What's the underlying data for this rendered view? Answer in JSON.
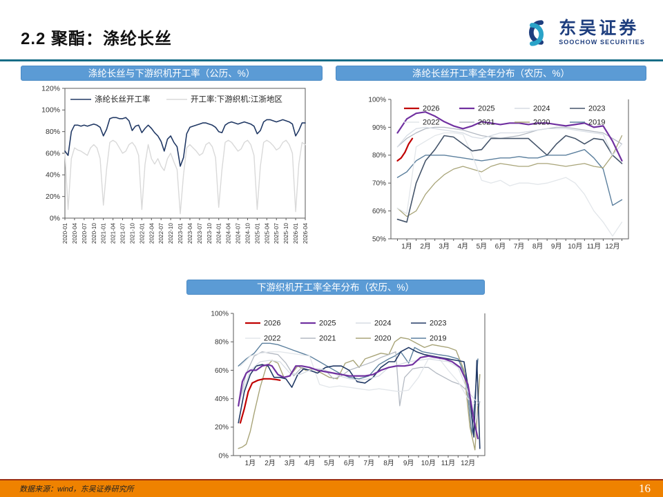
{
  "page": {
    "title": "2.2 聚酯：涤纶长丝",
    "page_number": "16",
    "source_note": "数据来源：wind，东吴证券研究所"
  },
  "logo": {
    "name_cn": "东吴证券",
    "name_en": "SOOCHOW SECURITIES"
  },
  "colors": {
    "chart_header_bar": "#5b9bd5",
    "top_divider": "#176d86",
    "footer_bg": "#ef8200",
    "footer_accent": "#9c2f12",
    "logo_navy": "#1e3e7e",
    "logo_teal": "#2aa3c8"
  },
  "chart_data": [
    {
      "id": "chart1",
      "type": "line",
      "title": "涤纶长丝与下游织机开工率（公历、%）",
      "xlabel": "",
      "ylabel": "",
      "ylim": [
        0,
        120
      ],
      "ystep": 20,
      "legend_position": "top-inside",
      "grid": false,
      "x_tick_labels": [
        "2020-01",
        "2020-04",
        "2020-07",
        "2020-10",
        "2021-01",
        "2021-04",
        "2021-07",
        "2021-10",
        "2022-01",
        "2022-04",
        "2022-07",
        "2022-10",
        "2023-01",
        "2023-04",
        "2023-07",
        "2023-10",
        "2024-01",
        "2024-04",
        "2024-07",
        "2024-10",
        "2025-01",
        "2025-04",
        "2025-07",
        "2025-10",
        "2026-01",
        "2026-04"
      ],
      "series": [
        {
          "name": "涤纶长丝开工率",
          "color": "#203864",
          "width": 1.6,
          "values": [
            62,
            58,
            80,
            86,
            86,
            85,
            86,
            85,
            86,
            87,
            86,
            84,
            76,
            82,
            92,
            93,
            93,
            92,
            92,
            93,
            90,
            81,
            85,
            86,
            79,
            83,
            86,
            83,
            79,
            76,
            71,
            62,
            73,
            76,
            70,
            66,
            48,
            56,
            78,
            84,
            85,
            86,
            87,
            88,
            88,
            87,
            86,
            84,
            80,
            79,
            86,
            88,
            89,
            88,
            87,
            88,
            89,
            88,
            87,
            85,
            78,
            81,
            89,
            91,
            91,
            90,
            89,
            90,
            91,
            90,
            89,
            87,
            76,
            81,
            88,
            88
          ]
        },
        {
          "name": "开工率:下游织机:江浙地区",
          "color": "#d9d9d9",
          "width": 1.4,
          "values": [
            60,
            8,
            55,
            65,
            63,
            62,
            60,
            58,
            65,
            68,
            65,
            55,
            12,
            45,
            70,
            72,
            70,
            65,
            60,
            62,
            68,
            70,
            66,
            58,
            8,
            50,
            68,
            55,
            50,
            55,
            48,
            44,
            55,
            60,
            52,
            45,
            4,
            40,
            65,
            68,
            65,
            62,
            58,
            60,
            68,
            70,
            66,
            56,
            10,
            45,
            70,
            72,
            70,
            66,
            62,
            64,
            70,
            72,
            68,
            58,
            8,
            48,
            70,
            72,
            70,
            67,
            63,
            65,
            70,
            72,
            68,
            60,
            6,
            50,
            70,
            68
          ]
        }
      ]
    },
    {
      "id": "chart2",
      "type": "line",
      "title": "涤纶长丝开工率全年分布（农历、%）",
      "xlabel": "",
      "ylabel": "",
      "ylim": [
        50,
        100
      ],
      "ystep": 10,
      "legend_position": "top-inside",
      "grid": false,
      "x_tick_labels": [
        "1月",
        "2月",
        "3月",
        "4月",
        "5月",
        "6月",
        "7月",
        "8月",
        "9月",
        "10月",
        "11月",
        "12月"
      ],
      "x": [
        0.5,
        1,
        1.5,
        2,
        2.5,
        3,
        3.5,
        4,
        4.5,
        5,
        5.5,
        6,
        6.5,
        7,
        7.5,
        8,
        8.5,
        9,
        9.5,
        10,
        10.5,
        11,
        11.5,
        12,
        12.5
      ],
      "series": [
        {
          "name": "2026",
          "color": "#c00000",
          "width": 2.2,
          "x": [
            0.5,
            0.7,
            0.9,
            1.1,
            1.3
          ],
          "values": [
            78,
            79,
            81,
            84,
            86
          ]
        },
        {
          "name": "2025",
          "color": "#7030a0",
          "width": 2.2,
          "values": [
            88,
            93,
            95,
            95.5,
            94,
            92,
            90.5,
            89.5,
            90.5,
            92,
            91.5,
            91,
            91.5,
            91.5,
            91,
            91.5,
            91.5,
            91,
            90.5,
            91,
            91.5,
            90,
            90.5,
            85,
            78
          ]
        },
        {
          "name": "2024",
          "color": "#d6dce4",
          "width": 1.3,
          "values": [
            83,
            87,
            89.5,
            90,
            89.5,
            89,
            88.5,
            88,
            86.5,
            86,
            87,
            88,
            88,
            88,
            88.5,
            89,
            89.5,
            89.5,
            89.5,
            89,
            88.5,
            88,
            87.5,
            80,
            84
          ]
        },
        {
          "name": "2023",
          "color": "#44546a",
          "width": 1.6,
          "values": [
            57,
            56,
            70,
            78,
            82,
            87,
            86.5,
            84,
            81.5,
            82,
            86,
            86,
            86,
            86,
            86,
            83,
            80,
            84,
            87,
            86,
            84,
            86,
            85.5,
            80,
            77
          ]
        },
        {
          "name": "2022",
          "color": "#e2e6ea",
          "width": 1.3,
          "values": [
            61,
            59,
            83,
            85,
            87,
            88,
            88,
            87.5,
            80,
            71,
            70,
            71,
            69,
            70,
            70,
            69.5,
            70,
            71,
            72,
            70,
            66,
            60,
            56,
            51,
            56
          ]
        },
        {
          "name": "2021",
          "color": "#b3b9c2",
          "width": 1.3,
          "values": [
            83,
            86,
            88,
            89.5,
            90,
            90,
            89.5,
            89,
            88,
            87,
            86.5,
            86,
            86.5,
            87,
            88,
            89,
            89.5,
            90,
            90,
            89.5,
            89,
            88.5,
            88,
            86,
            84
          ]
        },
        {
          "name": "2020",
          "color": "#a8a478",
          "width": 1.3,
          "values": [
            61,
            58,
            60,
            66,
            70,
            73,
            75,
            76,
            75,
            74,
            76,
            77,
            76.5,
            76,
            76,
            77,
            77,
            76.5,
            76,
            76.5,
            77,
            76,
            75.5,
            80,
            87
          ]
        },
        {
          "name": "2019",
          "color": "#5b7f9d",
          "width": 1.4,
          "values": [
            72,
            74,
            78,
            80,
            80,
            80,
            79.5,
            79,
            78.5,
            78,
            78.5,
            79,
            79,
            79.5,
            79,
            79,
            80,
            80,
            80,
            81,
            82,
            79,
            75,
            62,
            64
          ]
        }
      ]
    },
    {
      "id": "chart3",
      "type": "line",
      "title": "下游织机开工率全年分布（农历、%）",
      "xlabel": "",
      "ylabel": "",
      "ylim": [
        0,
        100
      ],
      "ystep": 20,
      "legend_position": "top-inside",
      "grid": false,
      "x_tick_labels": [
        "1月",
        "2月",
        "3月",
        "4月",
        "5月",
        "6月",
        "7月",
        "8月",
        "9月",
        "10月",
        "11月",
        "12月"
      ],
      "x": [
        0.5,
        1,
        1.5,
        2,
        2.5,
        3,
        3.5,
        4,
        4.5,
        5,
        5.5,
        6,
        6.5,
        7,
        7.5,
        8,
        8.5,
        9,
        9.5,
        10,
        10.5,
        11,
        11.5,
        12,
        12.5
      ],
      "series": [
        {
          "name": "2026",
          "color": "#c00000",
          "width": 2.2,
          "x": [
            0.5,
            0.7,
            0.9,
            1.1,
            1.4,
            1.7,
            2.0,
            2.3,
            2.5
          ],
          "values": [
            23,
            33,
            45,
            51,
            53,
            54,
            54,
            53.5,
            53
          ]
        },
        {
          "name": "2025",
          "color": "#7030a0",
          "width": 2.2,
          "x": [
            0.4,
            0.6,
            0.8,
            1.0,
            1.3,
            1.6,
            1.9,
            2.1,
            2.4,
            2.7,
            3.0,
            3.3,
            3.6,
            4.0,
            4.4,
            4.8,
            5.2,
            5.6,
            6.0,
            6.4,
            6.8,
            7.2,
            7.6,
            8.0,
            8.4,
            8.8,
            9.2,
            9.6,
            10.0,
            10.4,
            10.8,
            11.2,
            11.6,
            12.0,
            12.3,
            12.5
          ],
          "values": [
            35,
            52,
            58,
            60,
            60,
            63,
            64,
            63,
            57,
            55,
            56,
            63,
            63,
            62,
            60,
            59,
            58,
            57,
            56,
            56,
            56,
            57,
            60,
            62,
            63,
            63,
            64,
            69,
            70,
            69,
            68,
            66,
            62,
            50,
            25,
            12
          ]
        },
        {
          "name": "2024",
          "color": "#d6dce4",
          "width": 1.3,
          "values": [
            40,
            60,
            66,
            67,
            66,
            58,
            57,
            60,
            61,
            59,
            56,
            54,
            53,
            54,
            56,
            62,
            64,
            66,
            67,
            68,
            67,
            66,
            62,
            45,
            37
          ]
        },
        {
          "name": "2023",
          "color": "#203864",
          "width": 1.6,
          "x": [
            0.4,
            0.7,
            1.0,
            1.3,
            1.6,
            1.9,
            2.2,
            2.5,
            2.8,
            3.1,
            3.4,
            3.7,
            4.0,
            4.4,
            4.8,
            5.2,
            5.6,
            6.0,
            6.4,
            6.8,
            7.2,
            7.6,
            8.0,
            8.3,
            8.6,
            9.0,
            9.4,
            9.8,
            10.2,
            10.6,
            11.0,
            11.4,
            11.8,
            12.1,
            12.3,
            12.45,
            12.6
          ],
          "values": [
            23,
            45,
            57,
            63,
            64,
            63,
            55,
            55,
            54,
            48,
            57,
            61,
            60,
            58,
            62,
            63,
            63,
            60,
            52,
            51,
            55,
            62,
            66,
            66,
            73,
            76,
            73,
            71,
            70,
            69,
            68,
            67,
            66,
            40,
            13,
            67,
            5
          ]
        },
        {
          "name": "2022",
          "color": "#e2e6ea",
          "width": 1.3,
          "values": [
            63,
            70,
            72,
            73,
            73,
            72,
            71,
            70,
            50,
            48,
            49,
            48,
            47,
            46,
            47,
            46,
            45,
            46,
            55,
            68,
            69,
            60,
            52,
            40,
            35
          ]
        },
        {
          "name": "2021",
          "color": "#b3b9c2",
          "width": 1.3,
          "x": [
            0.4,
            0.8,
            1.2,
            1.6,
            2.0,
            2.4,
            2.8,
            3.2,
            3.6,
            4.0,
            4.4,
            4.8,
            5.2,
            5.6,
            6.0,
            6.4,
            6.8,
            7.2,
            7.6,
            8.0,
            8.35,
            8.55,
            8.8,
            9.2,
            9.6,
            10.0,
            10.4,
            10.8,
            11.2,
            11.6,
            12.0,
            12.3,
            12.6
          ],
          "values": [
            35,
            58,
            70,
            73,
            72,
            71,
            65,
            56,
            62,
            60,
            61,
            60,
            54,
            56,
            60,
            62,
            64,
            66,
            69,
            71,
            73,
            35,
            55,
            61,
            62,
            62,
            58,
            55,
            52,
            50,
            45,
            15,
            38
          ]
        },
        {
          "name": "2020",
          "color": "#a8a478",
          "width": 1.4,
          "x": [
            0.4,
            0.6,
            0.8,
            1.0,
            1.2,
            1.5,
            1.8,
            2.1,
            2.4,
            2.7,
            3.0,
            3.4,
            3.8,
            4.2,
            4.6,
            5.0,
            5.4,
            5.8,
            6.2,
            6.5,
            6.8,
            7.2,
            7.6,
            8.0,
            8.3,
            8.6,
            9.0,
            9.4,
            9.8,
            10.2,
            10.6,
            11.0,
            11.4,
            11.8,
            12.1,
            12.35,
            12.6
          ],
          "values": [
            5,
            6,
            8,
            17,
            30,
            48,
            62,
            67,
            65,
            55,
            56,
            63,
            60,
            61,
            58,
            55,
            54,
            65,
            67,
            62,
            68,
            70,
            72,
            71,
            80,
            83,
            82,
            79,
            76,
            78,
            77,
            76,
            74,
            60,
            20,
            4,
            57
          ]
        },
        {
          "name": "2019",
          "color": "#5b7f9d",
          "width": 1.4,
          "x": [
            0.4,
            0.8,
            1.2,
            1.6,
            2.0,
            2.4,
            2.8,
            3.2,
            3.6,
            4.0,
            4.5,
            5.0,
            5.5,
            6.0,
            6.5,
            7.0,
            7.5,
            8.0,
            8.3,
            8.6,
            9.0,
            9.3,
            9.7,
            10.1,
            10.5,
            11.0,
            11.5,
            11.9,
            12.2,
            12.5
          ],
          "values": [
            63,
            68,
            72,
            79,
            79,
            78,
            76,
            74,
            72,
            70,
            66,
            62,
            58,
            55,
            54,
            56,
            64,
            68,
            70,
            73,
            65,
            76,
            73,
            72,
            71,
            70,
            68,
            55,
            14,
            68
          ]
        }
      ]
    }
  ]
}
